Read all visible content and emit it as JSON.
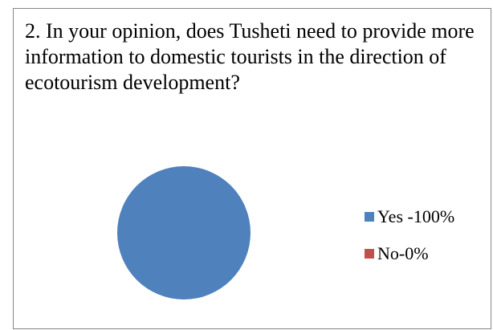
{
  "chart_data": {
    "type": "pie",
    "title": "2. In your opinion,  does Tusheti need to provide more information to domestic tourists in the direction of ecotourism development?",
    "categories": [
      "Yes -100%",
      "No-0%"
    ],
    "values": [
      100,
      0
    ],
    "colors": [
      "#4F81BD",
      "#C0504D"
    ],
    "legend_position": "right"
  }
}
